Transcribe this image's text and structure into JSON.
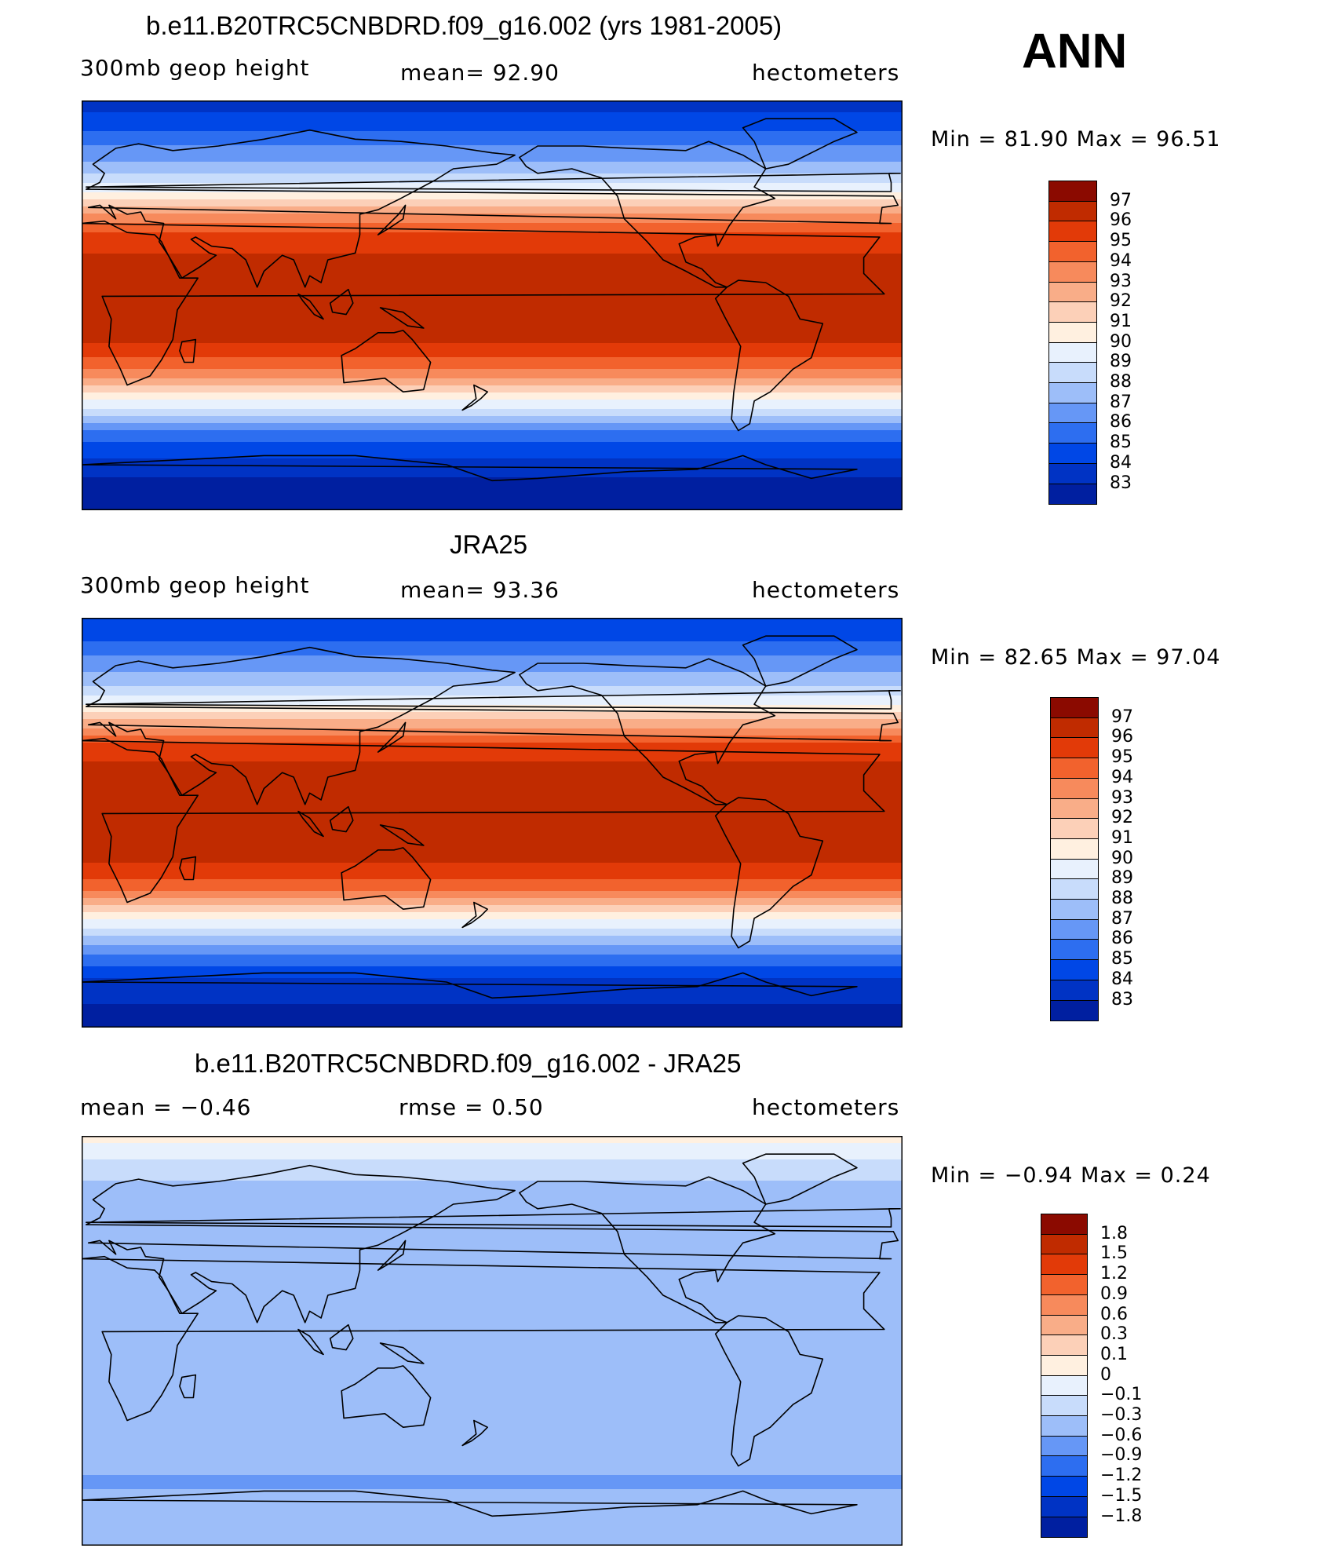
{
  "season": "ANN",
  "colors": {
    "abs": [
      "#00007f",
      "#001fa0",
      "#0033c4",
      "#0047e6",
      "#2d6ef0",
      "#6697f6",
      "#9dbef9",
      "#c8dcfb",
      "#e8f1fd",
      "#fff0e0",
      "#fcd0b8",
      "#f9ad88",
      "#f78a5c",
      "#f2622d",
      "#e23a08",
      "#c02b00",
      "#8b0a00"
    ],
    "diff": [
      "#00007f",
      "#001fa0",
      "#0033c4",
      "#0047e6",
      "#2d6ef0",
      "#6697f6",
      "#9dbef9",
      "#c8dcfb",
      "#e8f1fd",
      "#fff0e0",
      "#fcd0b8",
      "#f9ad88",
      "#f78a5c",
      "#f2622d",
      "#e23a08",
      "#c02b00",
      "#8b0a00"
    ]
  },
  "panels": [
    {
      "title": "b.e11.B20TRC5CNBDRD.f09_g16.002 (yrs 1981-2005)",
      "left_label": "300mb  geop  height",
      "center_label": "mean=   92.90",
      "right_label": "hectometers",
      "minmax": "Min =   81.90  Max =   96.51"
    },
    {
      "title": "JRA25",
      "left_label": "300mb  geop  height",
      "center_label": "mean=   93.36",
      "right_label": "hectometers",
      "minmax": "Min =   82.65  Max =   97.04"
    },
    {
      "title": "b.e11.B20TRC5CNBDRD.f09_g16.002 - JRA25",
      "left_label": "mean =   −0.46",
      "center_label": "rmse =    0.50",
      "right_label": "hectometers",
      "minmax": "Min =   −0.94  Max =    0.24"
    }
  ],
  "chart_data": [
    {
      "type": "heatmap",
      "title": "b.e11.B20TRC5CNBDRD.f09_g16.002 (yrs 1981-2005)",
      "variable": "300mb geop height",
      "units": "hectometers",
      "mean": 92.9,
      "min": 81.9,
      "max": 96.51,
      "colorbar_levels": [
        "97",
        "96",
        "95",
        "94",
        "93",
        "92",
        "91",
        "90",
        "89",
        "88",
        "87",
        "86",
        "85",
        "84",
        "83"
      ],
      "zonal_profile": {
        "lat": [
          90,
          80,
          70,
          60,
          55,
          50,
          45,
          40,
          35,
          30,
          20,
          0,
          -15,
          -20,
          -25,
          -30,
          -35,
          -40,
          -45,
          -50,
          -55,
          -60,
          -65,
          -70,
          -80,
          -90
        ],
        "value": [
          83.5,
          84.5,
          86.0,
          87.5,
          88.8,
          90.0,
          91.5,
          93.0,
          94.5,
          95.5,
          96.2,
          96.5,
          96.2,
          95.5,
          94.7,
          93.5,
          92.2,
          90.4,
          89.0,
          87.6,
          86.0,
          85.0,
          84.3,
          83.5,
          82.5,
          82.0
        ]
      }
    },
    {
      "type": "heatmap",
      "title": "JRA25",
      "variable": "300mb geop height",
      "units": "hectometers",
      "mean": 93.36,
      "min": 82.65,
      "max": 97.04,
      "colorbar_levels": [
        "97",
        "96",
        "95",
        "94",
        "93",
        "92",
        "91",
        "90",
        "89",
        "88",
        "87",
        "86",
        "85",
        "84",
        "83"
      ],
      "zonal_profile": {
        "lat": [
          90,
          80,
          70,
          60,
          55,
          50,
          45,
          40,
          35,
          30,
          20,
          0,
          -15,
          -20,
          -25,
          -30,
          -35,
          -40,
          -45,
          -50,
          -55,
          -60,
          -65,
          -70,
          -80,
          -90
        ],
        "value": [
          84.0,
          85.0,
          86.5,
          88.0,
          89.2,
          90.5,
          92.0,
          93.5,
          95.0,
          95.8,
          96.5,
          96.6,
          96.3,
          95.8,
          95.0,
          94.0,
          92.6,
          90.8,
          89.4,
          88.0,
          86.6,
          85.5,
          84.6,
          83.8,
          83.0,
          82.7
        ]
      }
    },
    {
      "type": "heatmap",
      "title": "b.e11.B20TRC5CNBDRD.f09_g16.002 - JRA25",
      "units": "hectometers",
      "mean": -0.46,
      "rmse": 0.5,
      "min": -0.94,
      "max": 0.24,
      "colorbar_levels": [
        "1.8",
        "1.5",
        "1.2",
        "0.9",
        "0.6",
        "0.3",
        "0.1",
        "0",
        "−0.1",
        "−0.3",
        "−0.6",
        "−0.9",
        "−1.2",
        "−1.5",
        "−1.8"
      ],
      "zonal_profile": {
        "lat": [
          90,
          80,
          70,
          60,
          50,
          40,
          20,
          0,
          -20,
          -40,
          -55,
          -60,
          -70,
          -80,
          -90
        ],
        "value": [
          0.05,
          -0.1,
          -0.3,
          -0.4,
          -0.45,
          -0.5,
          -0.5,
          -0.5,
          -0.5,
          -0.45,
          -0.3,
          -0.7,
          -0.5,
          -0.45,
          -0.4
        ]
      }
    }
  ]
}
